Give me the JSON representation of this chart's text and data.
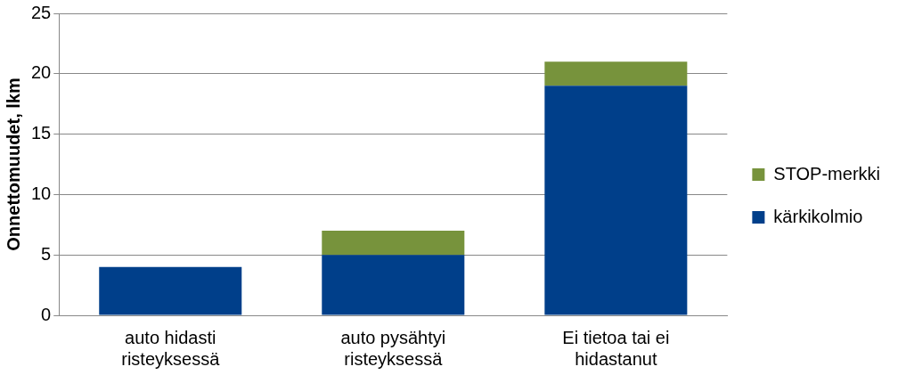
{
  "chart_data": {
    "type": "bar",
    "ylabel": "Onnettomuudet, lkm",
    "categories": [
      "auto hidasti risteyksessä",
      "auto pysähtyi risteyksessä",
      "Ei tietoa tai ei hidastanut"
    ],
    "series": [
      {
        "name": "kärkikolmio",
        "color": "#003f8a",
        "values": [
          4,
          5,
          19
        ]
      },
      {
        "name": "STOP-merkki",
        "color": "#77933c",
        "values": [
          0,
          2,
          2
        ]
      }
    ],
    "stacked": true,
    "ylim": [
      0,
      25
    ],
    "yticks": [
      0,
      5,
      10,
      15,
      20,
      25
    ],
    "grid": "y",
    "legend": "right"
  }
}
